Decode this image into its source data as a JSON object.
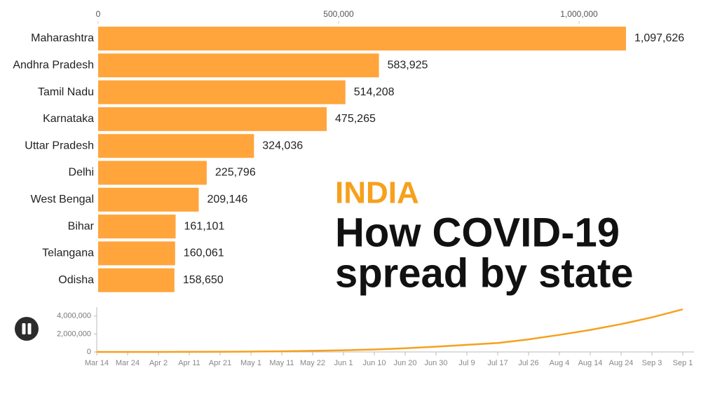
{
  "chart_data": [
    {
      "type": "bar",
      "orientation": "horizontal",
      "subtitle": "INDIA",
      "title": [
        "How COVID-19",
        "spread by state"
      ],
      "categories": [
        "Maharashtra",
        "Andhra Pradesh",
        "Tamil Nadu",
        "Karnataka",
        "Uttar Pradesh",
        "Delhi",
        "West Bengal",
        "Bihar",
        "Telangana",
        "Odisha"
      ],
      "values": [
        1097626,
        583925,
        514208,
        475265,
        324036,
        225796,
        209146,
        161101,
        160061,
        158650
      ],
      "value_labels": [
        "1,097,626",
        "583,925",
        "514,208",
        "475,265",
        "324,036",
        "225,796",
        "209,146",
        "161,101",
        "160,061",
        "158,650"
      ],
      "color": "#ffa53c",
      "title_color": "#f7a01d",
      "xlim": [
        0,
        1250000
      ],
      "xticks": [
        0,
        {
          "value": 500000,
          "label": "500,000"
        },
        {
          "value": 1000000,
          "label": "1,000,000"
        }
      ]
    },
    {
      "type": "line",
      "categories": [
        "Mar 14",
        "Mar 24",
        "Apr 2",
        "Apr 11",
        "Apr 21",
        "May 1",
        "May 11",
        "May 22",
        "Jun 1",
        "Jun 10",
        "Jun 20",
        "Jun 30",
        "Jul 9",
        "Jul 17",
        "Jul 26",
        "Aug 4",
        "Aug 14",
        "Aug 24",
        "Sep 3",
        "Sep 1"
      ],
      "values": [
        100,
        500,
        2500,
        8000,
        20000,
        37000,
        70000,
        125000,
        190000,
        277000,
        410000,
        585000,
        795000,
        1000000,
        1400000,
        1900000,
        2450000,
        3100000,
        3850000,
        4750000
      ],
      "color": "#f7a01d",
      "ylim": [
        0,
        5000000
      ],
      "yticks": [
        0,
        {
          "value": 2000000,
          "label": "2,000,000"
        },
        {
          "value": 4000000,
          "label": "4,000,000"
        }
      ]
    }
  ]
}
